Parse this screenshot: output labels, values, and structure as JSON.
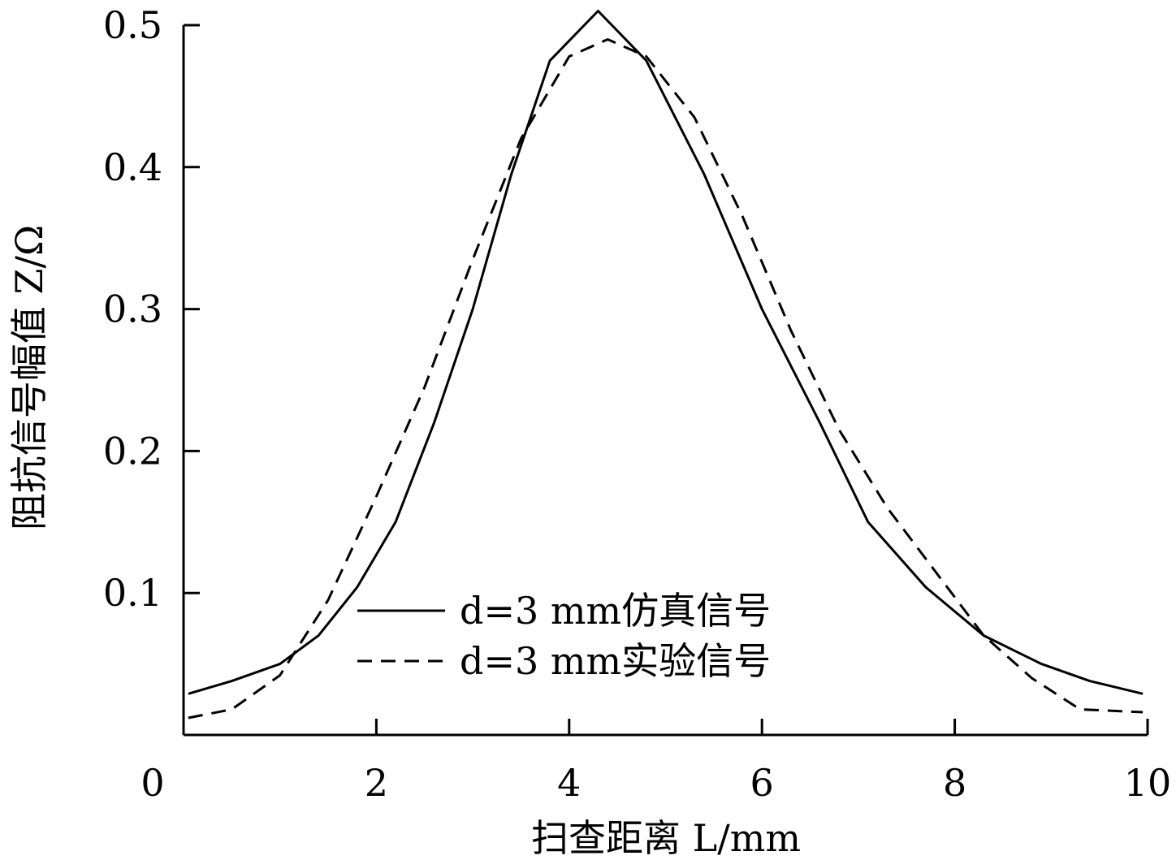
{
  "chart_data": {
    "type": "line",
    "xlabel": "扫查距离 L/mm",
    "ylabel": "阻抗信号幅值 Z/Ω",
    "xlim": [
      0,
      10
    ],
    "ylim": [
      0,
      0.5
    ],
    "x_ticks": [
      0,
      2,
      4,
      6,
      8,
      10
    ],
    "x_tick_labels": [
      "0",
      "2",
      "4",
      "6",
      "8",
      "10"
    ],
    "y_ticks": [
      0.1,
      0.2,
      0.3,
      0.4,
      0.5
    ],
    "y_tick_labels": [
      "0.1",
      "0.2",
      "0.3",
      "0.4",
      "0.5"
    ],
    "grid": false,
    "legend_position": "bottom-center",
    "series": [
      {
        "name": "d=3 mm仿真信号",
        "style": "solid",
        "x": [
          0.05,
          0.5,
          1.0,
          1.4,
          1.8,
          2.2,
          2.6,
          3.0,
          3.4,
          3.8,
          4.3,
          4.8,
          5.4,
          6.0,
          6.6,
          7.1,
          7.7,
          8.3,
          8.9,
          9.4,
          9.95
        ],
        "y": [
          0.029,
          0.038,
          0.05,
          0.07,
          0.104,
          0.15,
          0.22,
          0.3,
          0.395,
          0.475,
          0.51,
          0.475,
          0.395,
          0.3,
          0.22,
          0.15,
          0.104,
          0.07,
          0.05,
          0.038,
          0.029
        ]
      },
      {
        "name": "d=3 mm实验信号",
        "style": "dashed",
        "x": [
          0.05,
          0.5,
          1.0,
          1.5,
          2.0,
          2.5,
          3.0,
          3.5,
          4.0,
          4.4,
          4.8,
          5.3,
          5.8,
          6.3,
          6.8,
          7.3,
          7.8,
          8.3,
          8.8,
          9.3,
          9.95
        ],
        "y": [
          0.012,
          0.018,
          0.042,
          0.095,
          0.168,
          0.245,
          0.335,
          0.42,
          0.478,
          0.49,
          0.478,
          0.435,
          0.365,
          0.285,
          0.215,
          0.16,
          0.115,
          0.07,
          0.04,
          0.018,
          0.016
        ]
      }
    ]
  }
}
